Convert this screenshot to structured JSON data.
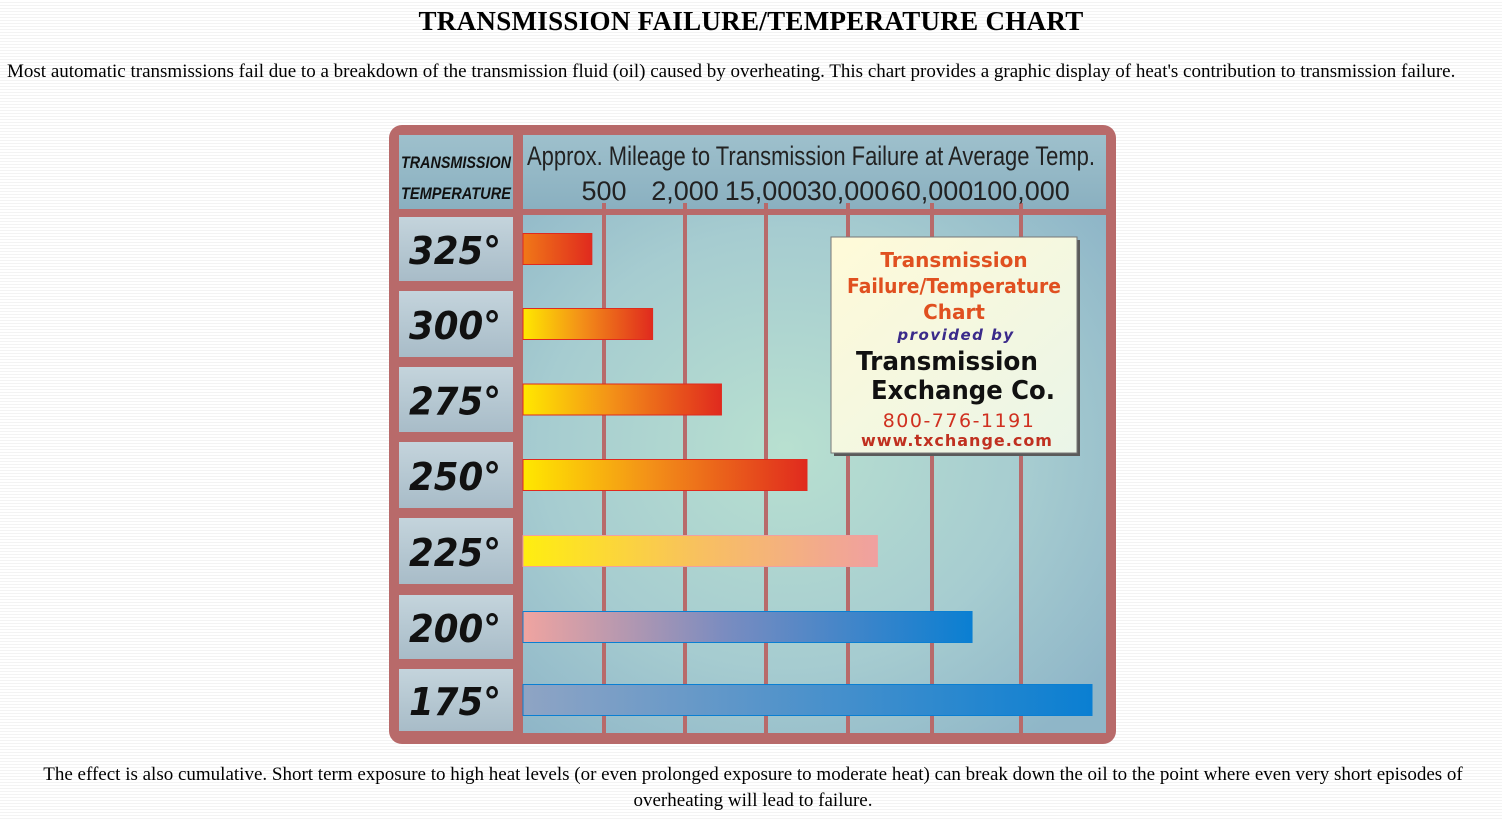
{
  "page": {
    "title": "TRANSMISSION FAILURE/TEMPERATURE CHART",
    "intro": "Most automatic transmissions fail due to a breakdown of the transmission fluid (oil) caused by overheating.    This chart provides a graphic display of  heat's contribution to transmission failure.",
    "outro": "The effect is also cumulative.  Short term exposure to high heat levels (or even prolonged  exposure to moderate heat)   can break down the oil to the point where even very short episodes of overheating will lead to failure."
  },
  "chart_data": {
    "type": "bar",
    "orientation": "horizontal",
    "title": "Approx. Mileage to Transmission  Failure at Average Temp.",
    "ylabel_line1": "TRANSMISSION",
    "ylabel_line2": "TEMPERATURE",
    "x_ticks": [
      "500",
      "2,000",
      "15,000",
      "30,000",
      "60,000",
      "100,000"
    ],
    "categories": [
      "325°",
      "300°",
      "275°",
      "250°",
      "225°",
      "200°",
      "175°"
    ],
    "values": [
      "500",
      "2,000",
      "15,000",
      "30,000",
      "60,000",
      "100,000",
      "beyond 100,000"
    ],
    "value_position_ticks": [
      0.85,
      1.6,
      2.45,
      3.5,
      4.35,
      5.45,
      7.15
    ],
    "grid": true,
    "colors": {
      "hot_red": "#e02a1e",
      "hot_orange": "#f07818",
      "warm_yellow": "#ffe800",
      "pink": "#f0a4a0",
      "cool_blue": "#0a7fd2",
      "frame": "#b86a6a",
      "panel": "#a8c6cc"
    }
  },
  "ad_box": {
    "line1": "Transmission",
    "line2": "Failure/Temperature",
    "line3": "Chart",
    "line4": "provided by",
    "line5": "Transmission",
    "line6": "Exchange Co.",
    "phone": "800-776-1191",
    "url": "www.txchange.com"
  }
}
